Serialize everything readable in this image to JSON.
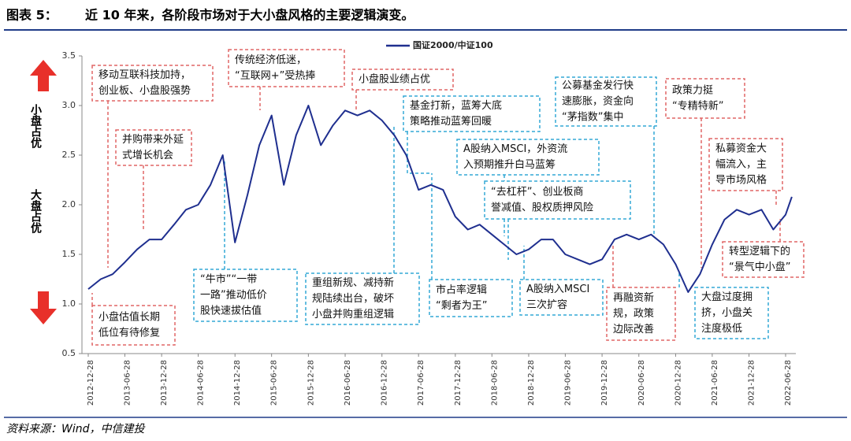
{
  "figure_label": "图表 5：",
  "chart_data": {
    "type": "line",
    "title": "近 10 年来，各阶段市场对于大小盘风格的主要逻辑演变。",
    "source": "资料来源：Wind，中信建投",
    "side_labels": {
      "top": "小盘占优",
      "bottom": "大盘占优"
    },
    "xticks": [
      "2012-12-28",
      "2013-06-28",
      "2013-12-28",
      "2014-06-28",
      "2014-12-28",
      "2015-06-28",
      "2015-12-28",
      "2016-06-28",
      "2016-12-28",
      "2017-06-28",
      "2017-12-28",
      "2018-06-28",
      "2018-12-28",
      "2019-06-28",
      "2019-12-28",
      "2020-06-28",
      "2020-12-28",
      "2021-06-28",
      "2021-12-28",
      "2022-06-28"
    ],
    "xlim": [
      "2012-12-28",
      "2022-06-28"
    ],
    "ylim": [
      0.5,
      3.5
    ],
    "yticks": [
      {
        "value": 0.5,
        "label": "0.5"
      },
      {
        "value": 1,
        "label": "1.0"
      },
      {
        "value": 1.5,
        "label": "1.5"
      },
      {
        "value": 2,
        "label": "2.0"
      },
      {
        "value": 2.5,
        "label": "2.5"
      },
      {
        "value": 3,
        "label": "3.0"
      },
      {
        "value": 3.5,
        "label": "3.5"
      }
    ],
    "x": [
      "2012-12-28",
      "2013-02-28",
      "2013-04-28",
      "2013-06-28",
      "2013-08-28",
      "2013-10-28",
      "2013-12-28",
      "2014-02-28",
      "2014-04-28",
      "2014-06-28",
      "2014-08-28",
      "2014-10-28",
      "2014-12-28",
      "2015-02-28",
      "2015-04-28",
      "2015-06-28",
      "2015-08-28",
      "2015-10-28",
      "2015-12-28",
      "2016-02-28",
      "2016-04-28",
      "2016-06-28",
      "2016-08-28",
      "2016-10-28",
      "2016-12-28",
      "2017-02-28",
      "2017-04-28",
      "2017-06-28",
      "2017-08-28",
      "2017-10-28",
      "2017-12-28",
      "2018-02-28",
      "2018-04-28",
      "2018-06-28",
      "2018-08-28",
      "2018-10-28",
      "2018-12-28",
      "2019-02-28",
      "2019-04-28",
      "2019-06-28",
      "2019-08-28",
      "2019-10-28",
      "2019-12-28",
      "2020-02-28",
      "2020-04-28",
      "2020-06-28",
      "2020-08-28",
      "2020-10-28",
      "2020-12-28",
      "2021-02-28",
      "2021-04-28",
      "2021-06-28",
      "2021-08-28",
      "2021-10-28",
      "2021-12-28",
      "2022-02-28",
      "2022-04-28",
      "2022-06-28",
      "2022-07-29"
    ],
    "series": [
      {
        "name": "国证2000/中证100",
        "color": "#1f2f8f",
        "values": [
          1.15,
          1.25,
          1.3,
          1.42,
          1.55,
          1.65,
          1.65,
          1.8,
          1.95,
          2.0,
          2.2,
          2.5,
          1.62,
          2.1,
          2.6,
          2.9,
          2.2,
          2.7,
          3.0,
          2.6,
          2.8,
          2.95,
          2.9,
          2.95,
          2.85,
          2.7,
          2.5,
          2.15,
          2.2,
          2.15,
          1.88,
          1.75,
          1.8,
          1.7,
          1.6,
          1.5,
          1.55,
          1.65,
          1.65,
          1.5,
          1.45,
          1.4,
          1.45,
          1.65,
          1.7,
          1.65,
          1.7,
          1.6,
          1.4,
          1.12,
          1.3,
          1.6,
          1.85,
          1.95,
          1.9,
          1.95,
          1.75,
          1.9,
          2.08
        ]
      }
    ],
    "legend": "top",
    "annotations": [
      {
        "lines": [
          "移动互联科技加持，",
          "创业板、小盘股强势"
        ],
        "color": "#e06666"
      },
      {
        "lines": [
          "并购带来外延",
          "式增长机会"
        ],
        "color": "#e06666"
      },
      {
        "lines": [
          "传统经济低迷，",
          "“互联网+”受热捧"
        ],
        "color": "#e06666"
      },
      {
        "lines": [
          "小盘股业绩占优"
        ],
        "color": "#e06666"
      },
      {
        "lines": [
          "基金打新，蓝筹大底",
          "策略推动蓝筹回暖"
        ],
        "color": "#33a9d6"
      },
      {
        "lines": [
          "A股纳入MSCI，外资流",
          "入预期推升白马蓝筹"
        ],
        "color": "#33a9d6"
      },
      {
        "lines": [
          "“去杠杆”、创业板商",
          "誉减值、股权质押风险"
        ],
        "color": "#33a9d6"
      },
      {
        "lines": [
          "公募基金发行快",
          "速膨胀，资金向",
          "“茅指数”集中"
        ],
        "color": "#33a9d6"
      },
      {
        "lines": [
          "政策力挺",
          "“专精特新”"
        ],
        "color": "#e06666"
      },
      {
        "lines": [
          "私募资金大",
          "幅流入，主",
          "导市场风格"
        ],
        "color": "#e06666"
      },
      {
        "lines": [
          "转型逻辑下的",
          "“景气中小盘”"
        ],
        "color": "#e06666"
      },
      {
        "lines": [
          "大盘过度拥",
          "挤，小盘关",
          "注度极低"
        ],
        "color": "#33a9d6"
      },
      {
        "lines": [
          "再融资新",
          "规，政策",
          "边际改善"
        ],
        "color": "#e06666"
      },
      {
        "lines": [
          "A股纳入MSCI",
          "三次扩容"
        ],
        "color": "#33a9d6"
      },
      {
        "lines": [
          "市占率逻辑",
          "“剩者为王”"
        ],
        "color": "#33a9d6"
      },
      {
        "lines": [
          "重组新规、减持新",
          "规陆续出台，破坏",
          "小盘并购重组逻辑"
        ],
        "color": "#33a9d6"
      },
      {
        "lines": [
          "“牛市”“一带",
          "一路”推动低价",
          "股快速拔估值"
        ],
        "color": "#33a9d6"
      },
      {
        "lines": [
          "小盘估值长期",
          "低位有待修复"
        ],
        "color": "#e06666"
      }
    ]
  }
}
